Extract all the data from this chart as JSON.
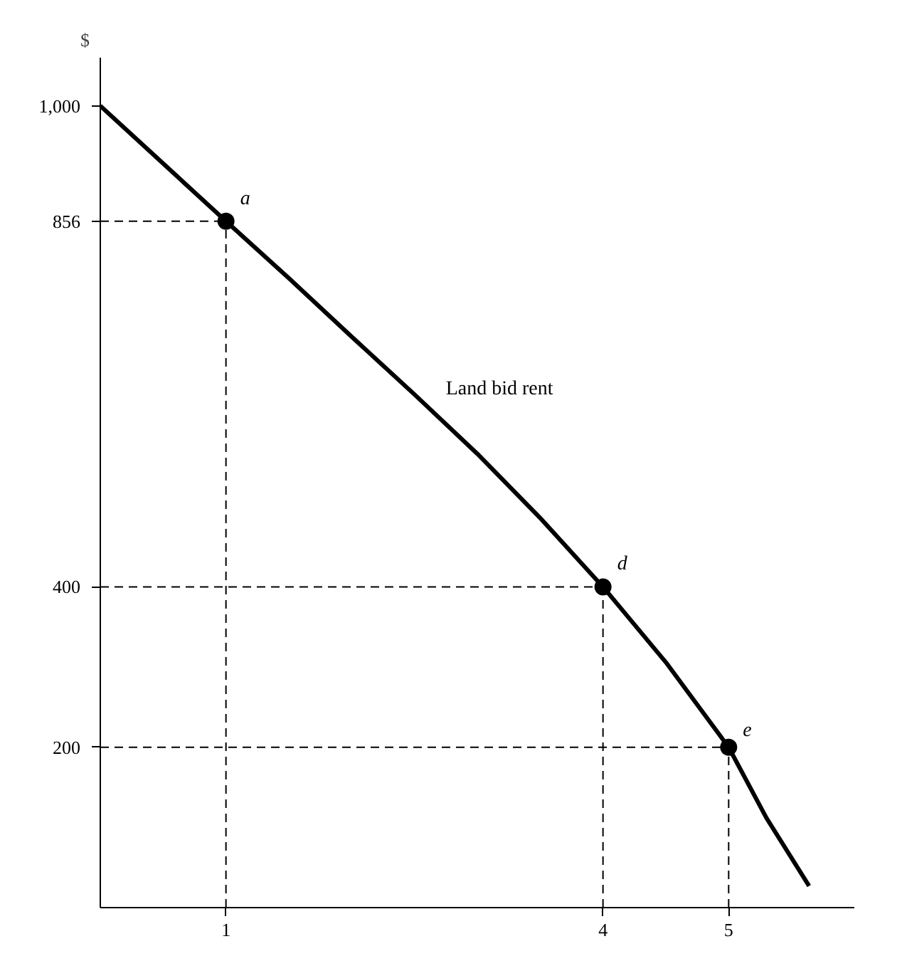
{
  "chart_data": {
    "type": "line",
    "ylabel": "$",
    "x": [
      0,
      1,
      1.5,
      2,
      2.5,
      3,
      3.5,
      4,
      4.5,
      5,
      5.3,
      5.64
    ],
    "series": [
      {
        "name": "Land bid rent",
        "color": "#000000",
        "values": [
          1000,
          856,
          785,
          712,
          640,
          566,
          486,
          400,
          306,
          200,
          112,
          27
        ]
      },
      {
        "type": "scatter",
        "color": "#000000",
        "marker": "circle",
        "x": [
          1,
          4,
          5
        ],
        "values": [
          856,
          400,
          200
        ]
      }
    ],
    "annotations": [
      {
        "text": "a",
        "x": 1,
        "y": 856
      },
      {
        "text": "d",
        "x": 4,
        "y": 400
      },
      {
        "text": "e",
        "x": 5,
        "y": 200
      }
    ],
    "ref_lines": [
      {
        "axis": "x",
        "value": 1,
        "color": "#000000",
        "line_style": "dashed"
      },
      {
        "axis": "x",
        "value": 4,
        "color": "#000000",
        "line_style": "dashed"
      },
      {
        "axis": "x",
        "value": 5,
        "color": "#000000",
        "line_style": "dashed"
      },
      {
        "axis": "y",
        "value": 856,
        "color": "#000000",
        "line_style": "dashed"
      },
      {
        "axis": "y",
        "value": 400,
        "color": "#000000",
        "line_style": "dashed"
      },
      {
        "axis": "y",
        "value": 200,
        "color": "#000000",
        "line_style": "dashed"
      }
    ],
    "xlim": [
      0,
      6.0
    ],
    "ylim": [
      0,
      1060
    ],
    "xticks": [
      1,
      4,
      5
    ],
    "yticks": [
      200,
      400,
      856,
      {
        "value": 1000,
        "label": "1,000"
      }
    ],
    "line_style": "solid"
  }
}
